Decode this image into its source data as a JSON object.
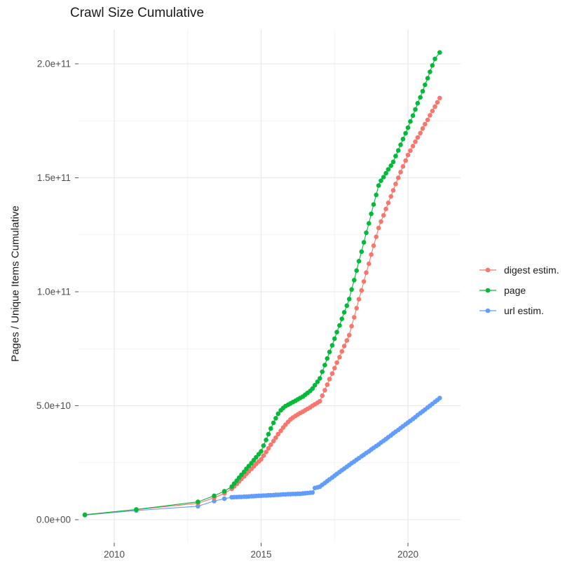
{
  "title": "Crawl Size Cumulative",
  "chart_data": {
    "type": "line",
    "title": "Crawl Size Cumulative",
    "xlabel": "",
    "ylabel": "Pages / Unique Items Cumulative",
    "legend_position": "right",
    "grid": true,
    "values_unit_note": "point y-values are in billions (1e9 items); y axis labels use scientific notation",
    "xlim": [
      2008.7,
      2021.8
    ],
    "ylim_billions": [
      -10,
      215
    ],
    "x_ticks": [
      {
        "label": "2010",
        "year": 2010
      },
      {
        "label": "2015",
        "year": 2015
      },
      {
        "label": "2020",
        "year": 2020
      }
    ],
    "x_minor_years": [
      2012.5,
      2017.5
    ],
    "y_ticks": [
      {
        "label": "0.0e+00",
        "billions": 0
      },
      {
        "label": "5.0e+10",
        "billions": 50
      },
      {
        "label": "1.0e+11",
        "billions": 100
      },
      {
        "label": "1.5e+11",
        "billions": 150
      },
      {
        "label": "2.0e+11",
        "billions": 200
      }
    ],
    "y_minor_billions": [
      25,
      75,
      125,
      175
    ],
    "draw_order": [
      "url estim.",
      "digest estim.",
      "page"
    ],
    "series": [
      {
        "name": "digest estim.",
        "color": "#F8766D",
        "points": [
          [
            2009.0,
            2.1
          ],
          [
            2010.75,
            4.4
          ],
          [
            2012.85,
            7.2
          ],
          [
            2013.4,
            9.6
          ],
          [
            2013.75,
            11.5
          ],
          [
            2014.0,
            13.5
          ],
          [
            2014.08,
            14.6
          ],
          [
            2014.17,
            15.7
          ],
          [
            2014.25,
            16.8
          ],
          [
            2014.33,
            17.9
          ],
          [
            2014.42,
            19.0
          ],
          [
            2014.5,
            20.1
          ],
          [
            2014.58,
            21.2
          ],
          [
            2014.67,
            22.3
          ],
          [
            2014.75,
            23.4
          ],
          [
            2014.83,
            24.5
          ],
          [
            2014.92,
            25.5
          ],
          [
            2015.0,
            26.5
          ],
          [
            2015.08,
            28.1
          ],
          [
            2015.17,
            29.7
          ],
          [
            2015.25,
            31.3
          ],
          [
            2015.33,
            32.9
          ],
          [
            2015.42,
            34.5
          ],
          [
            2015.5,
            36.0
          ],
          [
            2015.58,
            37.5
          ],
          [
            2015.67,
            39.0
          ],
          [
            2015.75,
            40.4
          ],
          [
            2015.83,
            41.7
          ],
          [
            2015.92,
            42.9
          ],
          [
            2016.0,
            44.0
          ],
          [
            2016.08,
            44.8
          ],
          [
            2016.17,
            45.5
          ],
          [
            2016.25,
            46.2
          ],
          [
            2016.33,
            46.8
          ],
          [
            2016.42,
            47.4
          ],
          [
            2016.5,
            48.0
          ],
          [
            2016.58,
            48.6
          ],
          [
            2016.67,
            49.3
          ],
          [
            2016.75,
            50.0
          ],
          [
            2016.83,
            50.6
          ],
          [
            2016.92,
            51.3
          ],
          [
            2017.0,
            52.0
          ],
          [
            2017.08,
            54.4
          ],
          [
            2017.17,
            56.8
          ],
          [
            2017.25,
            59.2
          ],
          [
            2017.33,
            61.7
          ],
          [
            2017.42,
            64.1
          ],
          [
            2017.5,
            66.5
          ],
          [
            2017.58,
            68.9
          ],
          [
            2017.67,
            71.3
          ],
          [
            2017.75,
            73.8
          ],
          [
            2017.83,
            76.2
          ],
          [
            2017.92,
            78.6
          ],
          [
            2018.0,
            81.0
          ],
          [
            2018.08,
            84.9
          ],
          [
            2018.17,
            88.8
          ],
          [
            2018.25,
            92.8
          ],
          [
            2018.33,
            96.7
          ],
          [
            2018.42,
            100.6
          ],
          [
            2018.5,
            104.5
          ],
          [
            2018.58,
            108.4
          ],
          [
            2018.67,
            112.3
          ],
          [
            2018.75,
            116.3
          ],
          [
            2018.83,
            120.2
          ],
          [
            2018.92,
            124.1
          ],
          [
            2019.0,
            128.0
          ],
          [
            2019.08,
            130.8
          ],
          [
            2019.17,
            133.5
          ],
          [
            2019.25,
            136.3
          ],
          [
            2019.33,
            139.0
          ],
          [
            2019.42,
            141.8
          ],
          [
            2019.5,
            144.5
          ],
          [
            2019.58,
            147.3
          ],
          [
            2019.67,
            150.0
          ],
          [
            2019.75,
            152.5
          ],
          [
            2019.83,
            155.0
          ],
          [
            2019.92,
            157.5
          ],
          [
            2020.0,
            160.0
          ],
          [
            2020.08,
            161.9
          ],
          [
            2020.17,
            163.9
          ],
          [
            2020.25,
            165.8
          ],
          [
            2020.33,
            167.7
          ],
          [
            2020.42,
            169.6
          ],
          [
            2020.5,
            171.6
          ],
          [
            2020.58,
            173.5
          ],
          [
            2020.67,
            175.4
          ],
          [
            2020.75,
            177.4
          ],
          [
            2020.83,
            179.3
          ],
          [
            2020.92,
            181.2
          ],
          [
            2021.0,
            183.1
          ],
          [
            2021.08,
            185.0
          ]
        ]
      },
      {
        "name": "page",
        "color": "#00BA38",
        "points": [
          [
            2009.0,
            2.2
          ],
          [
            2010.75,
            4.5
          ],
          [
            2012.85,
            7.8
          ],
          [
            2013.4,
            10.5
          ],
          [
            2013.75,
            12.5
          ],
          [
            2014.0,
            14.5
          ],
          [
            2014.08,
            15.8
          ],
          [
            2014.17,
            17.1
          ],
          [
            2014.25,
            18.4
          ],
          [
            2014.33,
            19.7
          ],
          [
            2014.42,
            21.0
          ],
          [
            2014.5,
            22.3
          ],
          [
            2014.58,
            23.5
          ],
          [
            2014.67,
            24.8
          ],
          [
            2014.75,
            26.1
          ],
          [
            2014.83,
            27.4
          ],
          [
            2014.92,
            28.7
          ],
          [
            2015.0,
            30.0
          ],
          [
            2015.08,
            32.5
          ],
          [
            2015.17,
            35.0
          ],
          [
            2015.25,
            37.5
          ],
          [
            2015.33,
            40.0
          ],
          [
            2015.42,
            42.5
          ],
          [
            2015.5,
            44.5
          ],
          [
            2015.58,
            46.5
          ],
          [
            2015.67,
            48.0
          ],
          [
            2015.75,
            49.0
          ],
          [
            2015.83,
            49.8
          ],
          [
            2015.92,
            50.4
          ],
          [
            2016.0,
            51.0
          ],
          [
            2016.08,
            51.6
          ],
          [
            2016.17,
            52.2
          ],
          [
            2016.25,
            52.8
          ],
          [
            2016.33,
            53.4
          ],
          [
            2016.42,
            54.0
          ],
          [
            2016.5,
            54.8
          ],
          [
            2016.58,
            55.6
          ],
          [
            2016.67,
            56.5
          ],
          [
            2016.75,
            57.5
          ],
          [
            2016.83,
            59.0
          ],
          [
            2016.92,
            60.5
          ],
          [
            2017.0,
            62.0
          ],
          [
            2017.08,
            64.9
          ],
          [
            2017.17,
            67.8
          ],
          [
            2017.25,
            70.7
          ],
          [
            2017.33,
            73.6
          ],
          [
            2017.42,
            76.5
          ],
          [
            2017.5,
            79.4
          ],
          [
            2017.58,
            82.3
          ],
          [
            2017.67,
            85.2
          ],
          [
            2017.75,
            88.1
          ],
          [
            2017.83,
            91.0
          ],
          [
            2017.92,
            93.9
          ],
          [
            2018.0,
            96.8
          ],
          [
            2018.08,
            101.0
          ],
          [
            2018.17,
            105.1
          ],
          [
            2018.25,
            109.3
          ],
          [
            2018.33,
            113.4
          ],
          [
            2018.42,
            117.6
          ],
          [
            2018.5,
            121.7
          ],
          [
            2018.58,
            125.9
          ],
          [
            2018.67,
            130.0
          ],
          [
            2018.75,
            134.2
          ],
          [
            2018.83,
            138.3
          ],
          [
            2018.92,
            142.5
          ],
          [
            2019.0,
            146.6
          ],
          [
            2019.08,
            148.7
          ],
          [
            2019.17,
            150.3
          ],
          [
            2019.25,
            152.0
          ],
          [
            2019.33,
            153.7
          ],
          [
            2019.42,
            155.3
          ],
          [
            2019.5,
            157.0
          ],
          [
            2019.58,
            159.5
          ],
          [
            2019.67,
            162.0
          ],
          [
            2019.75,
            164.5
          ],
          [
            2019.83,
            167.0
          ],
          [
            2019.92,
            169.5
          ],
          [
            2020.0,
            172.0
          ],
          [
            2020.08,
            174.7
          ],
          [
            2020.17,
            177.3
          ],
          [
            2020.25,
            180.0
          ],
          [
            2020.33,
            182.7
          ],
          [
            2020.42,
            185.3
          ],
          [
            2020.5,
            188.0
          ],
          [
            2020.58,
            190.8
          ],
          [
            2020.67,
            193.7
          ],
          [
            2020.75,
            196.5
          ],
          [
            2020.83,
            199.3
          ],
          [
            2020.92,
            202.2
          ],
          [
            2021.08,
            205.0
          ]
        ]
      },
      {
        "name": "url estim.",
        "color": "#619CFF",
        "points": [
          [
            2009.0,
            2.0
          ],
          [
            2010.75,
            4.0
          ],
          [
            2012.85,
            5.9
          ],
          [
            2013.4,
            8.2
          ],
          [
            2013.75,
            9.2
          ],
          [
            2014.0,
            9.8
          ],
          [
            2014.08,
            9.9
          ],
          [
            2014.17,
            9.9
          ],
          [
            2014.25,
            10.0
          ],
          [
            2014.33,
            10.0
          ],
          [
            2014.42,
            10.1
          ],
          [
            2014.5,
            10.1
          ],
          [
            2014.58,
            10.2
          ],
          [
            2014.67,
            10.3
          ],
          [
            2014.75,
            10.3
          ],
          [
            2014.83,
            10.4
          ],
          [
            2014.92,
            10.5
          ],
          [
            2015.0,
            10.5
          ],
          [
            2015.08,
            10.6
          ],
          [
            2015.17,
            10.6
          ],
          [
            2015.25,
            10.7
          ],
          [
            2015.33,
            10.7
          ],
          [
            2015.42,
            10.8
          ],
          [
            2015.5,
            10.9
          ],
          [
            2015.58,
            10.9
          ],
          [
            2015.67,
            11.0
          ],
          [
            2015.75,
            11.1
          ],
          [
            2015.83,
            11.1
          ],
          [
            2015.92,
            11.2
          ],
          [
            2016.0,
            11.2
          ],
          [
            2016.08,
            11.3
          ],
          [
            2016.17,
            11.3
          ],
          [
            2016.25,
            11.4
          ],
          [
            2016.33,
            11.4
          ],
          [
            2016.42,
            11.5
          ],
          [
            2016.5,
            11.6
          ],
          [
            2016.58,
            11.7
          ],
          [
            2016.67,
            11.8
          ],
          [
            2016.75,
            11.9
          ],
          [
            2016.83,
            13.9
          ],
          [
            2016.92,
            14.2
          ],
          [
            2017.0,
            14.5
          ],
          [
            2017.08,
            15.3
          ],
          [
            2017.17,
            16.1
          ],
          [
            2017.25,
            16.9
          ],
          [
            2017.33,
            17.7
          ],
          [
            2017.42,
            18.5
          ],
          [
            2017.5,
            19.3
          ],
          [
            2017.58,
            20.1
          ],
          [
            2017.67,
            20.9
          ],
          [
            2017.75,
            21.7
          ],
          [
            2017.83,
            22.4
          ],
          [
            2017.92,
            23.2
          ],
          [
            2018.0,
            24.0
          ],
          [
            2018.08,
            24.8
          ],
          [
            2018.17,
            25.5
          ],
          [
            2018.25,
            26.3
          ],
          [
            2018.33,
            27.0
          ],
          [
            2018.42,
            27.8
          ],
          [
            2018.5,
            28.5
          ],
          [
            2018.58,
            29.3
          ],
          [
            2018.67,
            30.0
          ],
          [
            2018.75,
            30.8
          ],
          [
            2018.83,
            31.5
          ],
          [
            2018.92,
            32.3
          ],
          [
            2019.0,
            33.0
          ],
          [
            2019.08,
            33.8
          ],
          [
            2019.17,
            34.6
          ],
          [
            2019.25,
            35.4
          ],
          [
            2019.33,
            36.2
          ],
          [
            2019.42,
            37.0
          ],
          [
            2019.5,
            37.8
          ],
          [
            2019.58,
            38.6
          ],
          [
            2019.67,
            39.4
          ],
          [
            2019.75,
            40.2
          ],
          [
            2019.83,
            41.0
          ],
          [
            2019.92,
            41.8
          ],
          [
            2020.0,
            42.6
          ],
          [
            2020.08,
            43.4
          ],
          [
            2020.17,
            44.2
          ],
          [
            2020.25,
            45.0
          ],
          [
            2020.33,
            45.9
          ],
          [
            2020.42,
            46.7
          ],
          [
            2020.5,
            47.5
          ],
          [
            2020.58,
            48.3
          ],
          [
            2020.67,
            49.2
          ],
          [
            2020.75,
            50.0
          ],
          [
            2020.83,
            50.8
          ],
          [
            2020.92,
            51.7
          ],
          [
            2021.0,
            52.5
          ],
          [
            2021.08,
            53.4
          ]
        ]
      }
    ]
  },
  "legend": {
    "items": [
      {
        "label": "digest estim."
      },
      {
        "label": "page"
      },
      {
        "label": "url estim."
      }
    ]
  },
  "colors": {
    "grid_major": "#E9E9E9",
    "grid_minor": "#F2F2F2",
    "tick_mark": "#555555",
    "tick_label": "#4D4D4D"
  }
}
